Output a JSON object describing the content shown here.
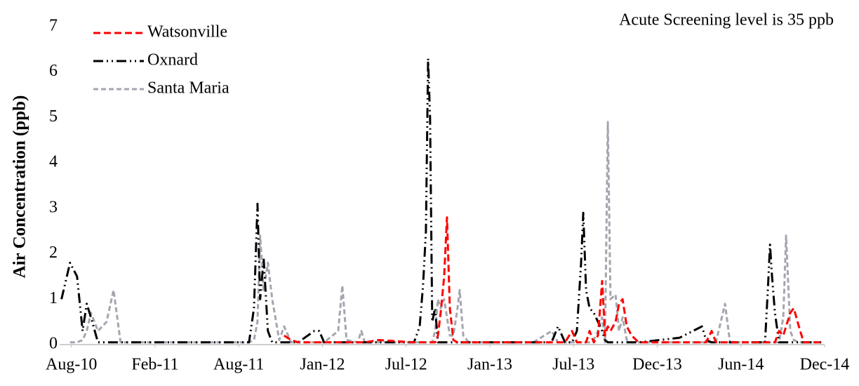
{
  "chart_data": {
    "type": "line",
    "y_label": "Air Concentration (ppb)",
    "annotation": "Acute Screening level is 35 ppb",
    "legend": "top-left",
    "grid": false,
    "x": [
      2010.541,
      2010.592,
      2010.634,
      2010.667,
      2010.692,
      2010.717,
      2010.759,
      2010.81,
      2010.852,
      2010.894,
      2011.221,
      2011.556,
      2011.661,
      2011.691,
      2011.712,
      2011.728,
      2011.749,
      2011.774,
      2011.8,
      2011.842,
      2011.871,
      2011.913,
      2011.955,
      2012.051,
      2012.081,
      2012.11,
      2012.194,
      2012.219,
      2012.244,
      2012.311,
      2012.332,
      2012.353,
      2012.437,
      2012.647,
      2012.681,
      2012.701,
      2012.718,
      2012.731,
      2012.743,
      2012.756,
      2012.773,
      2012.79,
      2012.806,
      2012.827,
      2012.844,
      2012.861,
      2012.882,
      2012.907,
      2012.92,
      2012.941,
      2012.974,
      2013.108,
      2013.36,
      2013.469,
      2013.507,
      2013.549,
      2013.591,
      2013.62,
      2013.645,
      2013.658,
      2013.675,
      2013.696,
      2013.721,
      2013.746,
      2013.771,
      2013.788,
      2013.805,
      2013.821,
      2013.851,
      2013.872,
      2013.893,
      2013.918,
      2013.947,
      2013.989,
      2014.233,
      2014.367,
      2014.392,
      2014.425,
      2014.451,
      2014.505,
      2014.535,
      2014.744,
      2014.761,
      2014.774,
      2014.786,
      2014.803,
      2014.828,
      2014.853,
      2014.87,
      2014.895,
      2014.916,
      2014.946,
      2014.975,
      2015.088
    ],
    "series": [
      {
        "name": "Watsonville",
        "color": "#ff0000",
        "dash": "10,5",
        "values": [
          null,
          null,
          null,
          null,
          null,
          null,
          null,
          null,
          null,
          null,
          null,
          null,
          null,
          null,
          null,
          null,
          null,
          null,
          null,
          null,
          0.2,
          0.1,
          0.05,
          0.05,
          0.05,
          0.05,
          0.05,
          0.05,
          0.05,
          0.05,
          0.05,
          0.05,
          0.1,
          0.05,
          0.05,
          0.05,
          0.05,
          0.05,
          0.05,
          0.05,
          0.05,
          0.2,
          0.7,
          1.5,
          2.8,
          0.8,
          0.1,
          0.05,
          0.05,
          0.05,
          0.05,
          0.05,
          0.05,
          0.05,
          0.05,
          0.05,
          0.3,
          0.05,
          0.05,
          0.05,
          0.05,
          0.3,
          0.05,
          0.2,
          1.4,
          0.2,
          0.4,
          0.3,
          0.5,
          0.9,
          1.0,
          0.4,
          0.2,
          0.05,
          0.05,
          0.05,
          0.05,
          0.3,
          0.05,
          0.05,
          0.05,
          0.05,
          0.05,
          0.05,
          0.05,
          0.05,
          0.3,
          0.2,
          0.4,
          0.7,
          0.8,
          0.4,
          0.05,
          0.05
        ]
      },
      {
        "name": "Oxnard",
        "color": "#000000",
        "dash": "14,5,2,5,2,5",
        "values": [
          1.0,
          1.8,
          1.5,
          0.3,
          0.9,
          0.6,
          0.05,
          0.05,
          0.05,
          0.05,
          0.05,
          0.05,
          0.05,
          0.8,
          3.1,
          1.0,
          1.9,
          0.3,
          0.05,
          0.05,
          0.05,
          0.05,
          0.05,
          0.3,
          0.3,
          0.05,
          0.05,
          0.05,
          0.05,
          0.05,
          0.05,
          0.05,
          0.05,
          0.05,
          0.4,
          1.3,
          2.5,
          6.3,
          5.0,
          0.5,
          0.8,
          0.05,
          0.05,
          0.05,
          0.05,
          0.05,
          0.05,
          0.05,
          0.05,
          0.05,
          0.05,
          0.05,
          0.05,
          0.05,
          0.4,
          0.05,
          0.05,
          0.3,
          1.8,
          2.9,
          1.2,
          0.8,
          0.7,
          0.5,
          0.3,
          0.1,
          0.05,
          0.05,
          0.05,
          0.05,
          0.05,
          0.05,
          0.05,
          0.05,
          0.15,
          0.4,
          0.1,
          0.05,
          0.05,
          0.05,
          0.05,
          0.05,
          1.2,
          2.2,
          1.5,
          0.7,
          0.05,
          0.05,
          0.05,
          0.05,
          0.05,
          0.05,
          0.05,
          0.05
        ]
      },
      {
        "name": "Santa Maria",
        "color": "#a5a5b0",
        "dash": "7,4",
        "values": [
          null,
          0.05,
          0.05,
          0.1,
          0.3,
          0.7,
          0.3,
          0.5,
          1.2,
          0.05,
          0.05,
          0.05,
          0.05,
          0.1,
          0.5,
          2.4,
          1.2,
          1.8,
          1.0,
          0.1,
          0.4,
          0.05,
          0.05,
          0.05,
          0.05,
          0.05,
          0.3,
          1.3,
          0.1,
          0.05,
          0.3,
          0.05,
          0.05,
          0.05,
          0.05,
          0.05,
          0.05,
          0.05,
          0.05,
          0.05,
          0.3,
          1.0,
          0.8,
          1.0,
          0.6,
          0.2,
          0.2,
          0.8,
          1.2,
          0.2,
          0.05,
          0.05,
          0.05,
          0.3,
          0.05,
          0.05,
          0.05,
          0.05,
          0.05,
          0.05,
          0.05,
          0.05,
          0.1,
          0.3,
          0.6,
          0.05,
          4.9,
          1.0,
          1.1,
          0.3,
          0.6,
          0.1,
          0.05,
          0.05,
          0.05,
          0.05,
          0.05,
          0.05,
          0.05,
          0.9,
          0.05,
          0.05,
          0.05,
          0.05,
          0.05,
          0.05,
          0.05,
          0.6,
          2.4,
          0.3,
          0.1,
          0.05,
          0.05,
          0.05
        ]
      }
    ],
    "xlim": [
      2010.53,
      2015.1
    ],
    "xticks": [
      {
        "value": 2010.6,
        "label": "Aug-10"
      },
      {
        "value": 2011.1,
        "label": "Feb-11"
      },
      {
        "value": 2011.6,
        "label": "Aug-11"
      },
      {
        "value": 2012.1,
        "label": "Jan-12"
      },
      {
        "value": 2012.6,
        "label": "Jul-12"
      },
      {
        "value": 2013.1,
        "label": "Jan-13"
      },
      {
        "value": 2013.6,
        "label": "Jul-13"
      },
      {
        "value": 2014.1,
        "label": "Dec-13"
      },
      {
        "value": 2014.6,
        "label": "Jun-14"
      },
      {
        "value": 2015.1,
        "label": "Dec-14"
      }
    ],
    "ylim": [
      0,
      7
    ],
    "yticks": [
      0,
      1,
      2,
      3,
      4,
      5,
      6,
      7
    ]
  }
}
